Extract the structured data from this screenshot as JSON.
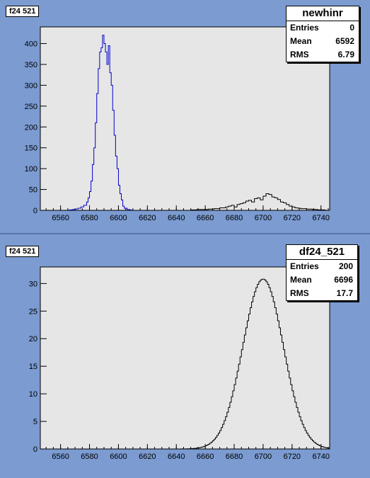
{
  "pads": [
    {
      "tag": "f24 521",
      "stats": {
        "name": "newhinr",
        "rows": [
          {
            "label": "Entries",
            "value": "0"
          },
          {
            "label": "Mean",
            "value": "6592"
          },
          {
            "label": "RMS",
            "value": "6.79"
          }
        ]
      }
    },
    {
      "tag": "f24 521",
      "stats": {
        "name": "df24_521",
        "rows": [
          {
            "label": "Entries",
            "value": "200"
          },
          {
            "label": "Mean",
            "value": "6696"
          },
          {
            "label": "RMS",
            "value": "17.7"
          }
        ]
      }
    }
  ],
  "chart_data": [
    {
      "type": "histogram",
      "xlim": [
        6546,
        6746
      ],
      "ylim": [
        0,
        440
      ],
      "xticks": [
        6560,
        6580,
        6600,
        6620,
        6640,
        6660,
        6680,
        6700,
        6720,
        6740
      ],
      "yticks": [
        0,
        50,
        100,
        150,
        200,
        250,
        300,
        350,
        400
      ],
      "series": [
        {
          "color": "#0000cc",
          "x": [
            6566,
            6568,
            6570,
            6572,
            6574,
            6576,
            6578,
            6579,
            6580,
            6581,
            6582,
            6583,
            6584,
            6585,
            6586,
            6587,
            6588,
            6589,
            6590,
            6591,
            6592,
            6593,
            6594,
            6595,
            6596,
            6597,
            6598,
            6599,
            6600,
            6601,
            6602,
            6603,
            6604,
            6606,
            6608
          ],
          "values": [
            1,
            2,
            3,
            5,
            8,
            12,
            20,
            30,
            45,
            70,
            110,
            150,
            210,
            280,
            340,
            380,
            390,
            420,
            400,
            380,
            350,
            395,
            330,
            300,
            240,
            180,
            130,
            100,
            60,
            40,
            25,
            10,
            5,
            2,
            1
          ]
        },
        {
          "color": "#000000",
          "x": [
            6650,
            6654,
            6658,
            6662,
            6666,
            6670,
            6674,
            6676,
            6678,
            6680,
            6682,
            6684,
            6686,
            6688,
            6690,
            6692,
            6694,
            6696,
            6698,
            6700,
            6702,
            6704,
            6706,
            6708,
            6710,
            6712,
            6714,
            6716,
            6718,
            6720,
            6722,
            6724,
            6726,
            6730,
            6734,
            6738,
            6742
          ],
          "values": [
            1,
            2,
            2,
            3,
            4,
            6,
            8,
            10,
            12,
            8,
            14,
            16,
            18,
            22,
            24,
            20,
            28,
            30,
            25,
            34,
            40,
            38,
            32,
            30,
            26,
            20,
            18,
            14,
            10,
            8,
            6,
            5,
            4,
            3,
            2,
            1,
            1
          ]
        }
      ]
    },
    {
      "type": "histogram",
      "xlim": [
        6546,
        6746
      ],
      "ylim": [
        0,
        33
      ],
      "xticks": [
        6560,
        6580,
        6600,
        6620,
        6640,
        6660,
        6680,
        6700,
        6720,
        6740
      ],
      "yticks": [
        0,
        5,
        10,
        15,
        20,
        25,
        30
      ],
      "series": [
        {
          "color": "#000000",
          "gauss": {
            "mean": 6700,
            "sigma": 14,
            "peak": 30.8,
            "bins": 200
          }
        }
      ]
    }
  ]
}
